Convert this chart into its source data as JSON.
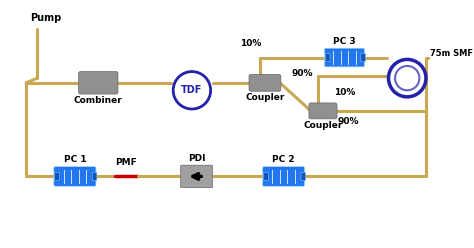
{
  "fiber_color": "#C8A850",
  "fiber_lw": 2.2,
  "box_gray": "#909090",
  "box_blue": "#2277EE",
  "tdf_circle_color": "#2222AA",
  "smf_circle_color": "#2222AA",
  "pdi_color": "#888888",
  "pmf_red": "#CC0000",
  "bg_color": "#FFFFFF",
  "labels": {
    "pump": "Pump",
    "combiner": "Combiner",
    "tdf": "TDF",
    "coupler1": "Coupler",
    "coupler2": "Coupler",
    "pc1": "PC 1",
    "pc2": "PC 2",
    "pc3": "PC 3",
    "pdi": "PDI",
    "pmf": "PMF",
    "smf": "75m SMF",
    "pct10_1": "10%",
    "pct90_1": "90%",
    "pct10_2": "10%",
    "pct90_2": "90%"
  }
}
